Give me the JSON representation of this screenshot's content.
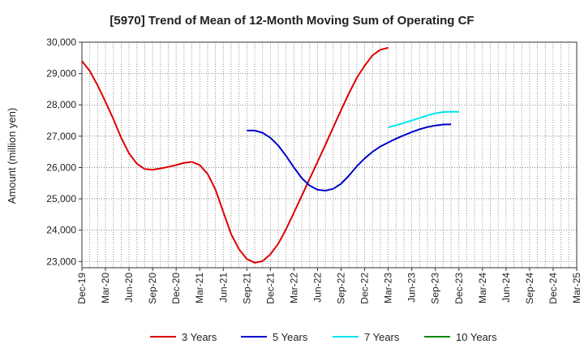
{
  "chart_data": {
    "type": "line",
    "title": "[5970]  Trend of Mean of 12-Month Moving Sum of Operating CF",
    "xlabel": "",
    "ylabel": "Amount (million yen)",
    "ylim": [
      22800,
      30000
    ],
    "yticks": [
      23000,
      24000,
      25000,
      26000,
      27000,
      28000,
      29000,
      30000
    ],
    "ytick_labels": [
      "23,000",
      "24,000",
      "25,000",
      "26,000",
      "27,000",
      "28,000",
      "29,000",
      "30,000"
    ],
    "x_categories": [
      "Dec-19",
      "Mar-20",
      "Jun-20",
      "Sep-20",
      "Dec-20",
      "Mar-21",
      "Jun-21",
      "Sep-21",
      "Dec-21",
      "Mar-22",
      "Jun-22",
      "Sep-22",
      "Dec-22",
      "Mar-23",
      "Jun-23",
      "Sep-23",
      "Dec-23",
      "Mar-24",
      "Jun-24",
      "Sep-24",
      "Dec-24",
      "Mar-25"
    ],
    "grid": true,
    "legend_position": "bottom",
    "series": [
      {
        "name": "3 Years",
        "color": "#dd0000",
        "points": [
          [
            0,
            29400
          ],
          [
            1,
            29080
          ],
          [
            2,
            28620
          ],
          [
            3,
            28100
          ],
          [
            4,
            27550
          ],
          [
            5,
            26950
          ],
          [
            6,
            26450
          ],
          [
            7,
            26120
          ],
          [
            8,
            25950
          ],
          [
            9,
            25930
          ],
          [
            10,
            25970
          ],
          [
            11,
            26020
          ],
          [
            12,
            26080
          ],
          [
            13,
            26150
          ],
          [
            14,
            26180
          ],
          [
            15,
            26080
          ],
          [
            16,
            25800
          ],
          [
            17,
            25300
          ],
          [
            18,
            24580
          ],
          [
            19,
            23870
          ],
          [
            20,
            23390
          ],
          [
            21,
            23080
          ],
          [
            22,
            22960
          ],
          [
            23,
            23010
          ],
          [
            24,
            23230
          ],
          [
            25,
            23570
          ],
          [
            26,
            24030
          ],
          [
            27,
            24560
          ],
          [
            28,
            25100
          ],
          [
            29,
            25640
          ],
          [
            30,
            26180
          ],
          [
            31,
            26730
          ],
          [
            32,
            27280
          ],
          [
            33,
            27830
          ],
          [
            34,
            28370
          ],
          [
            35,
            28860
          ],
          [
            36,
            29250
          ],
          [
            37,
            29580
          ],
          [
            38,
            29760
          ],
          [
            39,
            29820
          ]
        ]
      },
      {
        "name": "5 Years",
        "color": "#0000cc",
        "points": [
          [
            21,
            27180
          ],
          [
            22,
            27180
          ],
          [
            23,
            27110
          ],
          [
            24,
            26950
          ],
          [
            25,
            26700
          ],
          [
            26,
            26370
          ],
          [
            27,
            26000
          ],
          [
            28,
            25660
          ],
          [
            29,
            25420
          ],
          [
            30,
            25290
          ],
          [
            31,
            25260
          ],
          [
            32,
            25320
          ],
          [
            33,
            25480
          ],
          [
            34,
            25740
          ],
          [
            35,
            26040
          ],
          [
            36,
            26290
          ],
          [
            37,
            26500
          ],
          [
            38,
            26670
          ],
          [
            39,
            26800
          ],
          [
            40,
            26920
          ],
          [
            41,
            27030
          ],
          [
            42,
            27130
          ],
          [
            43,
            27220
          ],
          [
            44,
            27290
          ],
          [
            45,
            27340
          ],
          [
            46,
            27370
          ],
          [
            47,
            27380
          ]
        ]
      },
      {
        "name": "7 Years",
        "color": "#00e5ee",
        "points": [
          [
            39,
            27280
          ],
          [
            40,
            27350
          ],
          [
            41,
            27420
          ],
          [
            42,
            27500
          ],
          [
            43,
            27580
          ],
          [
            44,
            27660
          ],
          [
            45,
            27730
          ],
          [
            46,
            27770
          ],
          [
            47,
            27780
          ],
          [
            48,
            27780
          ]
        ]
      },
      {
        "name": "10 Years",
        "color": "#008800",
        "points": []
      }
    ]
  }
}
